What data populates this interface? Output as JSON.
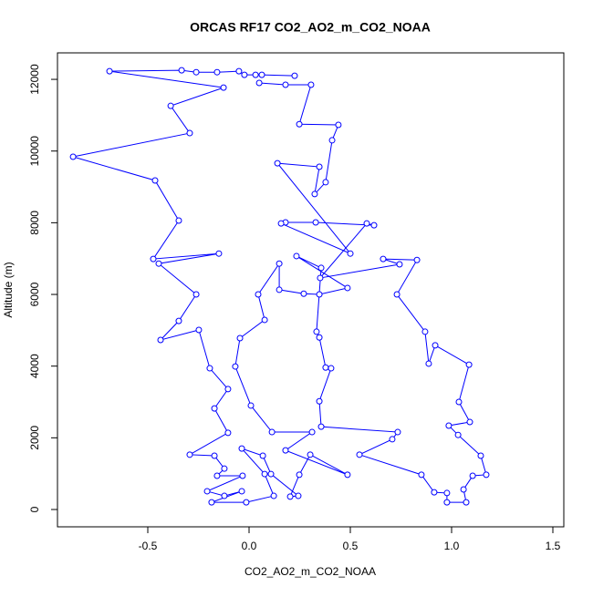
{
  "chart_data": {
    "type": "line",
    "title": "ORCAS RF17 CO2_AO2_m_CO2_NOAA",
    "x_label": "CO2_AO2_m_CO2_NOAA",
    "y_label": "Altitude (m)",
    "xlim": [
      -0.946,
      1.554
    ],
    "ylim": [
      -483,
      12739
    ],
    "xticks": [
      -0.5,
      {
        "value": 0,
        "label": "0.0"
      },
      0.5,
      {
        "value": 1,
        "label": "1.0"
      },
      1.5
    ],
    "yticks": [
      0,
      2000,
      4000,
      6000,
      8000,
      10000,
      12000
    ],
    "grid": false,
    "markers": true,
    "series": [
      {
        "color": "#0000ff",
        "x": [
          0.225,
          0.063,
          0.032,
          -0.023,
          -0.05,
          -0.158,
          -0.261,
          -0.333,
          -0.689,
          -0.126,
          -0.387,
          -0.293,
          -0.869,
          -0.464,
          -0.347,
          -0.473,
          -0.149,
          -0.446,
          -0.261,
          -0.347,
          -0.437,
          -0.248,
          -0.194,
          -0.104,
          -0.171,
          -0.104,
          -0.293,
          -0.171,
          -0.122,
          -0.158,
          -0.032,
          -0.207,
          -0.122,
          -0.036,
          -0.185,
          -0.014,
          0.122,
          0.077,
          -0.036,
          0.068,
          0.108,
          0.243,
          0.203,
          0.248,
          0.302,
          0.486,
          0.18,
          0.311,
          0.113,
          0.009,
          -0.068,
          -0.045,
          0.077,
          0.045,
          0.149,
          0.149,
          0.27,
          0.347,
          0.486,
          0.234,
          0.356,
          0.333,
          0.347,
          0.378,
          0.405,
          0.347,
          0.356,
          0.734,
          0.707,
          0.545,
          0.851,
          0.914,
          0.977,
          0.977,
          1.072,
          1.059,
          1.104,
          1.171,
          1.144,
          1.032,
          0.986,
          1.09,
          1.036,
          1.086,
          0.919,
          0.887,
          0.869,
          0.73,
          0.829,
          0.662,
          0.743,
          0.351,
          0.581,
          0.617,
          0.329,
          0.18,
          0.158,
          0.5,
          0.14,
          0.347,
          0.324,
          0.378,
          0.41,
          0.441,
          0.248,
          0.306,
          0.18,
          0.05
        ],
        "values": [
          12100,
          12125,
          12125,
          12125,
          12227,
          12200,
          12200,
          12252,
          12227,
          11770,
          11260,
          10500,
          9840,
          9180,
          8060,
          6990,
          7140,
          6860,
          6000,
          5260,
          4730,
          5010,
          3940,
          3360,
          2820,
          2140,
          1530,
          1500,
          1140,
          940,
          940,
          510,
          380,
          510,
          200,
          200,
          380,
          990,
          1700,
          1500,
          990,
          380,
          360,
          970,
          1530,
          970,
          1650,
          2160,
          2160,
          2900,
          3990,
          4780,
          5290,
          6000,
          6860,
          6130,
          6020,
          6000,
          6180,
          7070,
          6740,
          4960,
          4800,
          3960,
          3940,
          3020,
          2310,
          2160,
          1960,
          1530,
          970,
          480,
          460,
          200,
          200,
          560,
          940,
          970,
          1500,
          2080,
          2340,
          2440,
          3000,
          4040,
          4580,
          4070,
          4960,
          6000,
          6960,
          6990,
          6840,
          6460,
          7980,
          7930,
          8010,
          8010,
          7980,
          7140,
          9660,
          9560,
          8800,
          9130,
          10300,
          10730,
          10750,
          11850,
          11850,
          11900
        ]
      }
    ]
  }
}
